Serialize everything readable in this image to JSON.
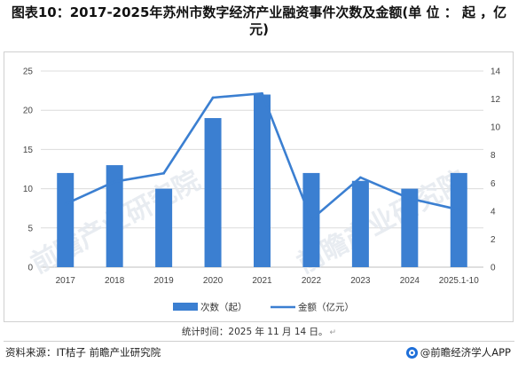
{
  "header": {
    "title": "图表10：2017-2025年苏州市数字经济产业融资事件次数及金额(单 位 ： 起 ，亿元)"
  },
  "chart_data": {
    "type": "bar+line",
    "categories": [
      "2017",
      "2018",
      "2019",
      "2020",
      "2021",
      "2022",
      "2023",
      "2024",
      "2025.1-10"
    ],
    "series": [
      {
        "name": "次数（起）",
        "type": "bar",
        "axis": "left",
        "color": "#3b7fd1",
        "values": [
          12,
          13,
          10,
          19,
          22,
          12,
          11,
          10,
          12
        ]
      },
      {
        "name": "金额（亿元）",
        "type": "line",
        "axis": "right",
        "color": "#3b7fd1",
        "values": [
          4.5,
          6.1,
          6.7,
          12.1,
          12.4,
          3.4,
          6.4,
          4.9,
          4.1
        ]
      }
    ],
    "left_axis": {
      "min": 0,
      "max": 25,
      "ticks": [
        "0",
        "5",
        "10",
        "15",
        "20",
        "25"
      ]
    },
    "right_axis": {
      "min": 0,
      "max": 14,
      "ticks": [
        "0",
        "2",
        "4",
        "6",
        "8",
        "10",
        "12",
        "14"
      ]
    },
    "grid": true,
    "legend_position": "bottom"
  },
  "footer": {
    "stats_time": "统计时间：2025 年 11 月 14 日。",
    "stats_mark": "↵",
    "source": "资料来源：IT桔子 前瞻产业研究院",
    "brand": "@前瞻经济学人APP"
  },
  "watermark": {
    "text": "前瞻产业研究院"
  }
}
